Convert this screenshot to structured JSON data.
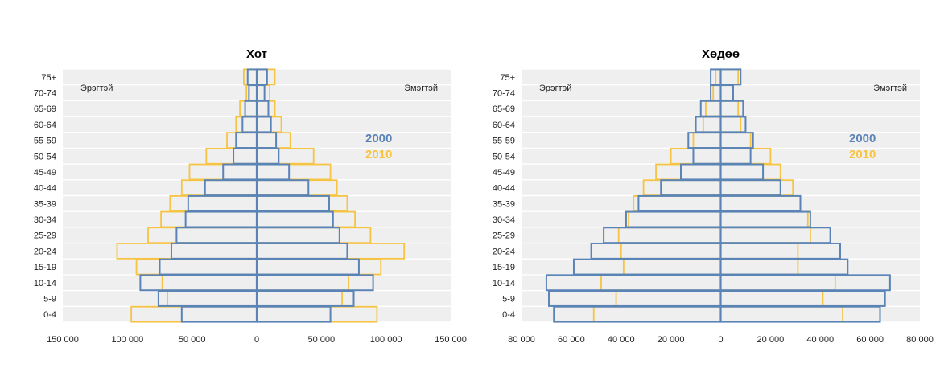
{
  "chart_data": [
    {
      "type": "bar",
      "title": "Хот",
      "left_label": "Эрэгтэй",
      "right_label": "Эмэгтэй",
      "categories": [
        "0-4",
        "5-9",
        "10-14",
        "15-19",
        "20-24",
        "25-29",
        "30-34",
        "35-39",
        "40-44",
        "45-49",
        "50-54",
        "55-59",
        "60-64",
        "65-69",
        "70-74",
        "75+"
      ],
      "xlim": [
        -150000,
        150000
      ],
      "xticks": [
        -150000,
        -100000,
        -50000,
        0,
        50000,
        100000,
        150000
      ],
      "xtick_labels": [
        "150 000",
        "100 000",
        "50 000",
        "0",
        "50 000",
        "100 000",
        "150 000"
      ],
      "grid": true,
      "legend_position": "right-center",
      "series": [
        {
          "name": "2000",
          "color": "#5b84b6",
          "male": [
            58000,
            76000,
            90000,
            75000,
            66000,
            62000,
            55000,
            53000,
            40000,
            26000,
            18000,
            16000,
            11000,
            9000,
            6000,
            7000
          ],
          "female": [
            57000,
            75000,
            90000,
            79000,
            70000,
            64000,
            59000,
            56000,
            40000,
            25000,
            17000,
            15000,
            11000,
            9000,
            6000,
            8000
          ]
        },
        {
          "name": "2010",
          "color": "#f6c342",
          "male": [
            97000,
            69000,
            73000,
            93000,
            108000,
            84000,
            74000,
            67000,
            58000,
            52000,
            39000,
            23000,
            16000,
            13000,
            8000,
            10000
          ],
          "female": [
            93000,
            66000,
            71000,
            96000,
            114000,
            88000,
            76000,
            70000,
            62000,
            57000,
            44000,
            26000,
            19000,
            14000,
            10000,
            14000
          ]
        }
      ]
    },
    {
      "type": "bar",
      "title": "Хөдөө",
      "left_label": "Эрэгтэй",
      "right_label": "Эмэгтэй",
      "categories": [
        "0-4",
        "5-9",
        "10-14",
        "15-19",
        "20-24",
        "25-29",
        "30-34",
        "35-39",
        "40-44",
        "45-49",
        "50-54",
        "55-59",
        "60-64",
        "65-69",
        "70-74",
        "75+"
      ],
      "xlim": [
        -80000,
        80000
      ],
      "xticks": [
        -80000,
        -60000,
        -40000,
        -20000,
        0,
        20000,
        40000,
        60000,
        80000
      ],
      "xtick_labels": [
        "80 000",
        "60 000",
        "40 000",
        "20 000",
        "0",
        "20 000",
        "40 000",
        "60 000",
        "80 000"
      ],
      "grid": true,
      "legend_position": "right-center",
      "series": [
        {
          "name": "2000",
          "color": "#5b84b6",
          "male": [
            67000,
            69000,
            70000,
            59000,
            52000,
            47000,
            38000,
            33000,
            24000,
            16000,
            11000,
            13000,
            10000,
            8000,
            4000,
            4000
          ],
          "female": [
            64000,
            66000,
            68000,
            51000,
            48000,
            44000,
            36000,
            32000,
            24000,
            17000,
            12000,
            13000,
            10000,
            9000,
            5000,
            8000
          ]
        },
        {
          "name": "2010",
          "color": "#f6c342",
          "male": [
            51000,
            42000,
            48000,
            39000,
            40000,
            41000,
            37000,
            35000,
            31000,
            26000,
            20000,
            11000,
            7000,
            6000,
            3000,
            2000
          ],
          "female": [
            49000,
            41000,
            46000,
            31000,
            31000,
            36000,
            35000,
            32000,
            29000,
            24000,
            20000,
            12000,
            8000,
            7000,
            5000,
            7000
          ]
        }
      ]
    }
  ]
}
